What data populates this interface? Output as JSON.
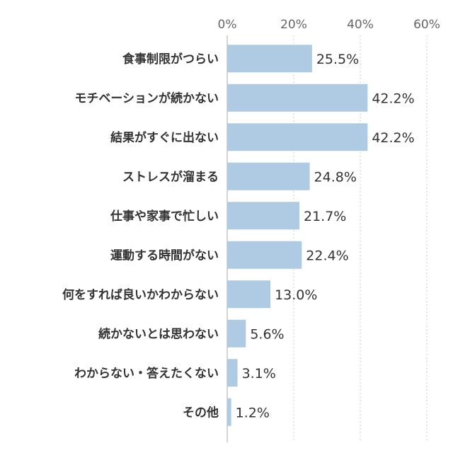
{
  "chart_data": {
    "type": "bar",
    "orientation": "horizontal",
    "categories": [
      "食事制限がつらい",
      "モチベーションが続かない",
      "結果がすぐに出ない",
      "ストレスが溜まる",
      "仕事や家事で忙しい",
      "運動する時間がない",
      "何をすれば良いかわからない",
      "続かないとは思わない",
      "わからない・答えたくない",
      "その他"
    ],
    "values": [
      25.5,
      42.2,
      42.2,
      24.8,
      21.7,
      22.4,
      13.0,
      5.6,
      3.1,
      1.2
    ],
    "value_labels": [
      "25.5%",
      "42.2%",
      "42.2%",
      "24.8%",
      "21.7%",
      "22.4%",
      "13.0%",
      "5.6%",
      "3.1%",
      "1.2%"
    ],
    "x_ticks": [
      0,
      20,
      40,
      60
    ],
    "x_tick_labels": [
      "0%",
      "20%",
      "40%",
      "60%"
    ],
    "xlim": [
      0,
      60
    ],
    "grid": true,
    "bar_color": "#aecbe3"
  }
}
